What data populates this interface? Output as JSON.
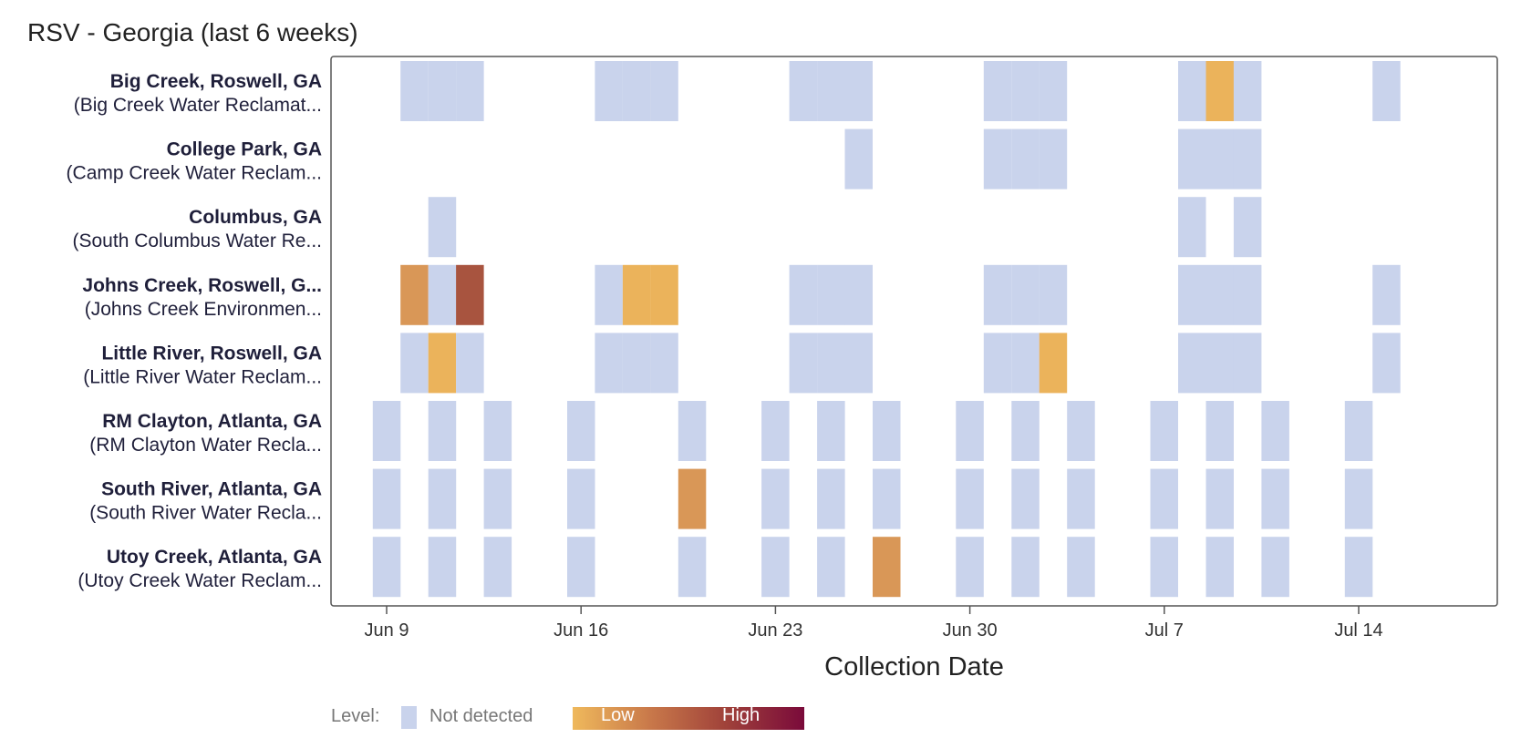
{
  "chart_data": {
    "type": "heatmap",
    "title": "RSV - Georgia (last 6 weeks)",
    "xlabel": "Collection Date",
    "ylabel": "",
    "x_domain": [
      "2024-06-08",
      "2024-07-19"
    ],
    "x_ticks": [
      {
        "date": "2024-06-09",
        "label": "Jun 9"
      },
      {
        "date": "2024-06-16",
        "label": "Jun 16"
      },
      {
        "date": "2024-06-23",
        "label": "Jun 23"
      },
      {
        "date": "2024-06-30",
        "label": "Jun 30"
      },
      {
        "date": "2024-07-07",
        "label": "Jul 7"
      },
      {
        "date": "2024-07-14",
        "label": "Jul 14"
      }
    ],
    "levels": {
      "not_detected": "#c9d3ec",
      "low": "#ebb35b",
      "mid": "#d99757",
      "high": "#a8543f"
    },
    "legend": {
      "prefix": "Level:",
      "not_detected_label": "Not detected",
      "low_label": "Low",
      "high_label": "High",
      "gradient": [
        "#efb95c",
        "#c9794a",
        "#a0423a",
        "#7a0a3a"
      ]
    },
    "sites": [
      {
        "name": "Big Creek, Roswell, GA",
        "sub": "(Big Creek Water Reclamat...",
        "samples": [
          {
            "date": "2024-06-10",
            "level": "not_detected"
          },
          {
            "date": "2024-06-11",
            "level": "not_detected"
          },
          {
            "date": "2024-06-12",
            "level": "not_detected"
          },
          {
            "date": "2024-06-17",
            "level": "not_detected"
          },
          {
            "date": "2024-06-18",
            "level": "not_detected"
          },
          {
            "date": "2024-06-19",
            "level": "not_detected"
          },
          {
            "date": "2024-06-24",
            "level": "not_detected"
          },
          {
            "date": "2024-06-25",
            "level": "not_detected"
          },
          {
            "date": "2024-06-26",
            "level": "not_detected"
          },
          {
            "date": "2024-07-01",
            "level": "not_detected"
          },
          {
            "date": "2024-07-02",
            "level": "not_detected"
          },
          {
            "date": "2024-07-03",
            "level": "not_detected"
          },
          {
            "date": "2024-07-08",
            "level": "not_detected"
          },
          {
            "date": "2024-07-09",
            "level": "low"
          },
          {
            "date": "2024-07-10",
            "level": "not_detected"
          },
          {
            "date": "2024-07-15",
            "level": "not_detected"
          }
        ]
      },
      {
        "name": "College Park, GA",
        "sub": "(Camp Creek Water Reclam...",
        "samples": [
          {
            "date": "2024-06-26",
            "level": "not_detected"
          },
          {
            "date": "2024-07-01",
            "level": "not_detected"
          },
          {
            "date": "2024-07-02",
            "level": "not_detected"
          },
          {
            "date": "2024-07-03",
            "level": "not_detected"
          },
          {
            "date": "2024-07-08",
            "level": "not_detected"
          },
          {
            "date": "2024-07-09",
            "level": "not_detected"
          },
          {
            "date": "2024-07-10",
            "level": "not_detected"
          }
        ]
      },
      {
        "name": "Columbus, GA",
        "sub": "(South Columbus Water Re...",
        "samples": [
          {
            "date": "2024-06-11",
            "level": "not_detected"
          },
          {
            "date": "2024-07-08",
            "level": "not_detected"
          },
          {
            "date": "2024-07-10",
            "level": "not_detected"
          }
        ]
      },
      {
        "name": "Johns Creek, Roswell, G...",
        "sub": "(Johns Creek Environmen...",
        "samples": [
          {
            "date": "2024-06-10",
            "level": "mid"
          },
          {
            "date": "2024-06-11",
            "level": "not_detected"
          },
          {
            "date": "2024-06-12",
            "level": "high"
          },
          {
            "date": "2024-06-17",
            "level": "not_detected"
          },
          {
            "date": "2024-06-18",
            "level": "low"
          },
          {
            "date": "2024-06-19",
            "level": "low"
          },
          {
            "date": "2024-06-24",
            "level": "not_detected"
          },
          {
            "date": "2024-06-25",
            "level": "not_detected"
          },
          {
            "date": "2024-06-26",
            "level": "not_detected"
          },
          {
            "date": "2024-07-01",
            "level": "not_detected"
          },
          {
            "date": "2024-07-02",
            "level": "not_detected"
          },
          {
            "date": "2024-07-03",
            "level": "not_detected"
          },
          {
            "date": "2024-07-08",
            "level": "not_detected"
          },
          {
            "date": "2024-07-09",
            "level": "not_detected"
          },
          {
            "date": "2024-07-10",
            "level": "not_detected"
          },
          {
            "date": "2024-07-15",
            "level": "not_detected"
          }
        ]
      },
      {
        "name": "Little River, Roswell, GA",
        "sub": "(Little River Water Reclam...",
        "samples": [
          {
            "date": "2024-06-10",
            "level": "not_detected"
          },
          {
            "date": "2024-06-11",
            "level": "low"
          },
          {
            "date": "2024-06-12",
            "level": "not_detected"
          },
          {
            "date": "2024-06-17",
            "level": "not_detected"
          },
          {
            "date": "2024-06-18",
            "level": "not_detected"
          },
          {
            "date": "2024-06-19",
            "level": "not_detected"
          },
          {
            "date": "2024-06-24",
            "level": "not_detected"
          },
          {
            "date": "2024-06-25",
            "level": "not_detected"
          },
          {
            "date": "2024-06-26",
            "level": "not_detected"
          },
          {
            "date": "2024-07-01",
            "level": "not_detected"
          },
          {
            "date": "2024-07-02",
            "level": "not_detected"
          },
          {
            "date": "2024-07-03",
            "level": "low"
          },
          {
            "date": "2024-07-08",
            "level": "not_detected"
          },
          {
            "date": "2024-07-09",
            "level": "not_detected"
          },
          {
            "date": "2024-07-10",
            "level": "not_detected"
          },
          {
            "date": "2024-07-15",
            "level": "not_detected"
          }
        ]
      },
      {
        "name": "RM Clayton, Atlanta, GA",
        "sub": "(RM Clayton Water Recla...",
        "samples": [
          {
            "date": "2024-06-09",
            "level": "not_detected"
          },
          {
            "date": "2024-06-11",
            "level": "not_detected"
          },
          {
            "date": "2024-06-13",
            "level": "not_detected"
          },
          {
            "date": "2024-06-16",
            "level": "not_detected"
          },
          {
            "date": "2024-06-20",
            "level": "not_detected"
          },
          {
            "date": "2024-06-23",
            "level": "not_detected"
          },
          {
            "date": "2024-06-25",
            "level": "not_detected"
          },
          {
            "date": "2024-06-27",
            "level": "not_detected"
          },
          {
            "date": "2024-06-30",
            "level": "not_detected"
          },
          {
            "date": "2024-07-02",
            "level": "not_detected"
          },
          {
            "date": "2024-07-04",
            "level": "not_detected"
          },
          {
            "date": "2024-07-07",
            "level": "not_detected"
          },
          {
            "date": "2024-07-09",
            "level": "not_detected"
          },
          {
            "date": "2024-07-11",
            "level": "not_detected"
          },
          {
            "date": "2024-07-14",
            "level": "not_detected"
          }
        ]
      },
      {
        "name": "South River, Atlanta, GA",
        "sub": "(South River Water Recla...",
        "samples": [
          {
            "date": "2024-06-09",
            "level": "not_detected"
          },
          {
            "date": "2024-06-11",
            "level": "not_detected"
          },
          {
            "date": "2024-06-13",
            "level": "not_detected"
          },
          {
            "date": "2024-06-16",
            "level": "not_detected"
          },
          {
            "date": "2024-06-20",
            "level": "mid"
          },
          {
            "date": "2024-06-23",
            "level": "not_detected"
          },
          {
            "date": "2024-06-25",
            "level": "not_detected"
          },
          {
            "date": "2024-06-27",
            "level": "not_detected"
          },
          {
            "date": "2024-06-30",
            "level": "not_detected"
          },
          {
            "date": "2024-07-02",
            "level": "not_detected"
          },
          {
            "date": "2024-07-04",
            "level": "not_detected"
          },
          {
            "date": "2024-07-07",
            "level": "not_detected"
          },
          {
            "date": "2024-07-09",
            "level": "not_detected"
          },
          {
            "date": "2024-07-11",
            "level": "not_detected"
          },
          {
            "date": "2024-07-14",
            "level": "not_detected"
          }
        ]
      },
      {
        "name": "Utoy Creek, Atlanta, GA",
        "sub": "(Utoy Creek Water Reclam...",
        "samples": [
          {
            "date": "2024-06-09",
            "level": "not_detected"
          },
          {
            "date": "2024-06-11",
            "level": "not_detected"
          },
          {
            "date": "2024-06-13",
            "level": "not_detected"
          },
          {
            "date": "2024-06-16",
            "level": "not_detected"
          },
          {
            "date": "2024-06-20",
            "level": "not_detected"
          },
          {
            "date": "2024-06-23",
            "level": "not_detected"
          },
          {
            "date": "2024-06-25",
            "level": "not_detected"
          },
          {
            "date": "2024-06-27",
            "level": "mid"
          },
          {
            "date": "2024-06-30",
            "level": "not_detected"
          },
          {
            "date": "2024-07-02",
            "level": "not_detected"
          },
          {
            "date": "2024-07-04",
            "level": "not_detected"
          },
          {
            "date": "2024-07-07",
            "level": "not_detected"
          },
          {
            "date": "2024-07-09",
            "level": "not_detected"
          },
          {
            "date": "2024-07-11",
            "level": "not_detected"
          },
          {
            "date": "2024-07-14",
            "level": "not_detected"
          }
        ]
      }
    ]
  }
}
